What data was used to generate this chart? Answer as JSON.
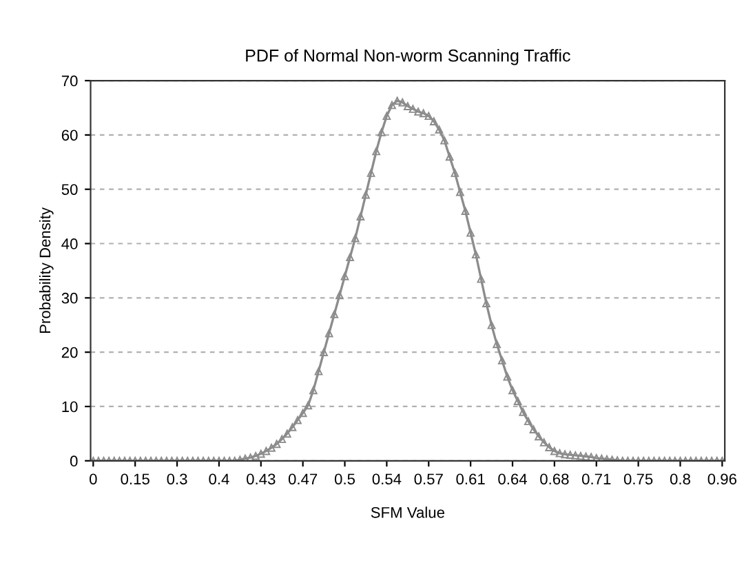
{
  "chart_data": {
    "type": "line",
    "title": "PDF of Normal Non-worm Scanning Traffic",
    "xlabel": "SFM Value",
    "ylabel": "Probability Density",
    "categories": [
      "0",
      null,
      null,
      null,
      null,
      null,
      null,
      null,
      "0.15",
      null,
      null,
      null,
      null,
      null,
      null,
      null,
      "0.3",
      null,
      null,
      null,
      null,
      null,
      null,
      null,
      "0.4",
      null,
      null,
      null,
      null,
      null,
      null,
      null,
      "0.43",
      null,
      null,
      null,
      null,
      null,
      null,
      null,
      "0.47",
      null,
      null,
      null,
      null,
      null,
      null,
      null,
      "0.5",
      null,
      null,
      null,
      null,
      null,
      null,
      null,
      "0.54",
      null,
      null,
      null,
      null,
      null,
      null,
      null,
      "0.57",
      null,
      null,
      null,
      null,
      null,
      null,
      null,
      "0.61",
      null,
      null,
      null,
      null,
      null,
      null,
      null,
      "0.64",
      null,
      null,
      null,
      null,
      null,
      null,
      null,
      "0.68",
      null,
      null,
      null,
      null,
      null,
      null,
      null,
      "0.71",
      null,
      null,
      null,
      null,
      null,
      null,
      null,
      "0.75",
      null,
      null,
      null,
      null,
      null,
      null,
      null,
      "0.8",
      null,
      null,
      null,
      null,
      null,
      null,
      null,
      "0.96"
    ],
    "series": [
      {
        "color": "#8c8c8c",
        "values": [
          0,
          0,
          0,
          0,
          0,
          0,
          0,
          0,
          0,
          0,
          0,
          0,
          0,
          0,
          0,
          0,
          0,
          0,
          0,
          0,
          0,
          0,
          0,
          0,
          0,
          0,
          0,
          0,
          0.2,
          0.4,
          0.6,
          0.9,
          1.3,
          1.8,
          2.4,
          3.1,
          4.0,
          5.0,
          6.2,
          7.5,
          8.8,
          10.2,
          13,
          16.5,
          20,
          23.5,
          27,
          30.5,
          34,
          37.5,
          41,
          45,
          49,
          53,
          57,
          60.5,
          63.5,
          65.5,
          66.3,
          66,
          65.3,
          64.8,
          64.3,
          64,
          63.5,
          62.5,
          61,
          59,
          56,
          53,
          49.5,
          46,
          42,
          38,
          33.5,
          29,
          25,
          21.5,
          18.5,
          15.5,
          13,
          11,
          9,
          7.3,
          5.8,
          4.5,
          3.4,
          2.5,
          1.8,
          1.4,
          1.2,
          1.1,
          1.0,
          0.9,
          0.8,
          0.7,
          0.5,
          0.4,
          0.3,
          0.2,
          0.1,
          0,
          0,
          0,
          0,
          0,
          0,
          0,
          0,
          0,
          0,
          0,
          0,
          0,
          0,
          0,
          0,
          0,
          0,
          0,
          0
        ]
      }
    ],
    "ylim": [
      0,
      70
    ],
    "yticks": [
      0,
      10,
      20,
      30,
      40,
      50,
      60,
      70
    ],
    "grid": "y",
    "marker": "triangle",
    "line_style": "solid",
    "legend": false
  }
}
